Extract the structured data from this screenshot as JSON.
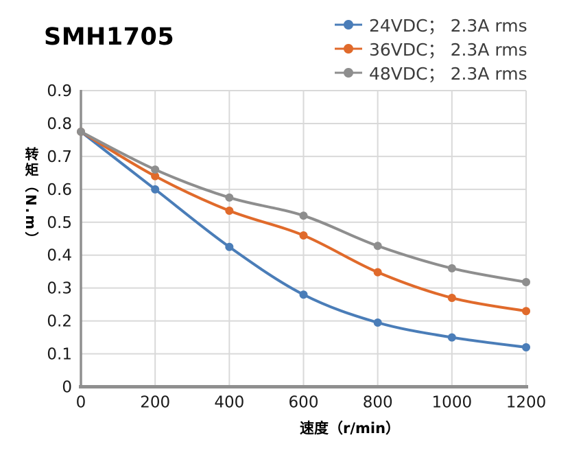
{
  "title": "SMH1705",
  "legend": {
    "position": "top-right",
    "items": [
      {
        "label": "24VDC； 2.3A rms",
        "color": "#4a7db8"
      },
      {
        "label": "36VDC； 2.3A rms",
        "color": "#e06a2b"
      },
      {
        "label": "48VDC； 2.3A rms",
        "color": "#8e8e8e"
      }
    ]
  },
  "chart_data": {
    "type": "line",
    "title": "SMH1705",
    "xlabel": "速度（r/min）",
    "ylabel": "转矩（N.m）",
    "x": [
      0,
      200,
      400,
      600,
      800,
      1000,
      1200
    ],
    "series": [
      {
        "name": "24VDC； 2.3A rms",
        "color": "#4a7db8",
        "values": [
          0.775,
          0.6,
          0.425,
          0.28,
          0.195,
          0.15,
          0.12
        ]
      },
      {
        "name": "36VDC； 2.3A rms",
        "color": "#e06a2b",
        "values": [
          0.775,
          0.64,
          0.535,
          0.46,
          0.348,
          0.27,
          0.23
        ]
      },
      {
        "name": "48VDC； 2.3A rms",
        "color": "#8e8e8e",
        "values": [
          0.775,
          0.66,
          0.575,
          0.52,
          0.428,
          0.36,
          0.318
        ]
      }
    ],
    "xlim": [
      0,
      1200
    ],
    "ylim": [
      0,
      0.9
    ],
    "xticks": [
      0,
      200,
      400,
      600,
      800,
      1000,
      1200
    ],
    "yticks": [
      0,
      0.1,
      0.2,
      0.3,
      0.4,
      0.5,
      0.6,
      0.7,
      0.8,
      0.9
    ],
    "grid": true,
    "legend_position": "top-right",
    "marker": "circle",
    "colors": {
      "grid": "#d9d9d9",
      "axis": "#8f8f8f",
      "tick_label": "#1a1a1a",
      "legend_text": "#3d3d3d",
      "title_text": "#000000"
    }
  }
}
